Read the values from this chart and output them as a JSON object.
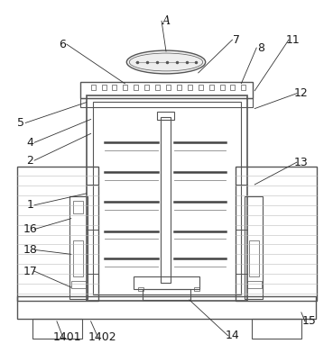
{
  "bg_color": "#ffffff",
  "line_color": "#555555",
  "label_color": "#1a1a1a",
  "figsize": [
    3.69,
    3.92
  ],
  "dpi": 100
}
